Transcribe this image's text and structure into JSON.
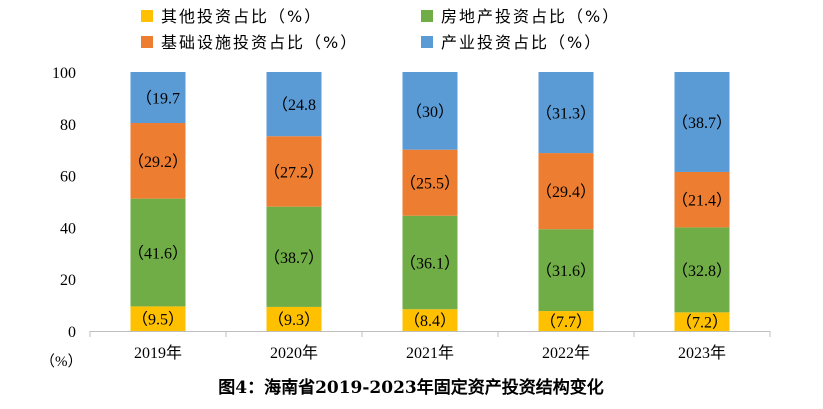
{
  "chart_data": {
    "type": "bar",
    "stacked": true,
    "title": "图4：海南省2019-2023年固定资产投资结构变化",
    "ylabel": "（%）",
    "xlabel": "",
    "ylim": [
      0,
      100
    ],
    "yticks": [
      0,
      20,
      40,
      60,
      80,
      100
    ],
    "categories": [
      "2019年",
      "2020年",
      "2021年",
      "2022年",
      "2023年"
    ],
    "series": [
      {
        "name": "其他投资占比（%）",
        "color": "#FFC000",
        "values": [
          9.5,
          9.3,
          8.4,
          7.7,
          7.2
        ],
        "labels": [
          "（9.5）",
          "（9.3）",
          "（8.4）",
          "（7.7）",
          "（7.2）"
        ]
      },
      {
        "name": "房地产投资占比（%）",
        "color": "#70AD47",
        "values": [
          41.6,
          38.7,
          36.1,
          31.6,
          32.8
        ],
        "labels": [
          "（41.6）",
          "（38.7）",
          "（36.1）",
          "（31.6）",
          "（32.8）"
        ]
      },
      {
        "name": "基础设施投资占比（%）",
        "color": "#ED7D31",
        "values": [
          29.2,
          27.2,
          25.5,
          29.4,
          21.4
        ],
        "labels": [
          "（29.2）",
          "（27.2）",
          "（25.5）",
          "（29.4）",
          "（21.4）"
        ]
      },
      {
        "name": "产业投资占比（%）",
        "color": "#5B9BD5",
        "values": [
          19.7,
          24.8,
          30,
          31.3,
          38.7
        ],
        "labels": [
          "（19.7",
          "（24.8",
          "（30）",
          "（31.3）",
          "（38.7）"
        ]
      }
    ],
    "legend_position": "top",
    "grid": false
  }
}
